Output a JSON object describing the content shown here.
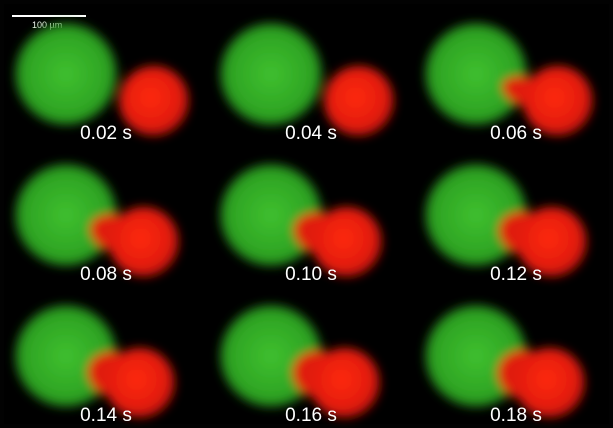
{
  "scale_bar": {
    "label": "100 µm"
  },
  "panels": [
    {
      "time": "0.02 s"
    },
    {
      "time": "0.04 s"
    },
    {
      "time": "0.06 s"
    },
    {
      "time": "0.08 s"
    },
    {
      "time": "0.10 s"
    },
    {
      "time": "0.12 s"
    },
    {
      "time": "0.14 s"
    },
    {
      "time": "0.16 s"
    },
    {
      "time": "0.18 s"
    }
  ]
}
